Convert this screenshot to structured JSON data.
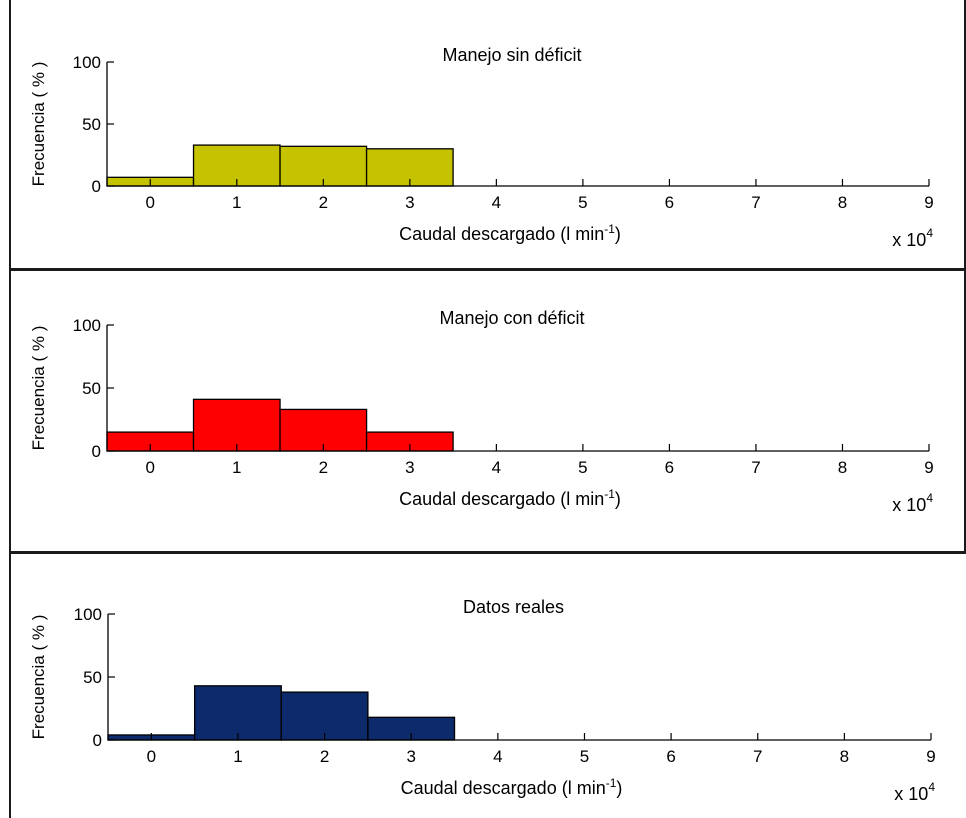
{
  "chart_data": [
    {
      "type": "bar",
      "title": "Manejo sin déficit",
      "xlabel": "Caudal descargado (l min",
      "xlabel_sup": "-1",
      "xlabel_close": ")",
      "ylabel": "Frecuencia ( % )",
      "multiplier_text": "x 10",
      "multiplier_sup": "4",
      "categories": [
        "0",
        "1",
        "2",
        "3"
      ],
      "values": [
        7,
        33,
        32,
        30
      ],
      "color": "#c5c200",
      "xlim": [
        -0.5,
        9
      ],
      "ylim": [
        0,
        100
      ],
      "xticks": [
        "0",
        "1",
        "2",
        "3",
        "4",
        "5",
        "6",
        "7",
        "8",
        "9"
      ],
      "yticks": [
        "0",
        "50",
        "100"
      ],
      "grid": false
    },
    {
      "type": "bar",
      "title": "Manejo con déficit",
      "xlabel": "Caudal descargado (l min",
      "xlabel_sup": "-1",
      "xlabel_close": ")",
      "ylabel": "Frecuencia ( % )",
      "multiplier_text": "x 10",
      "multiplier_sup": "4",
      "categories": [
        "0",
        "1",
        "2",
        "3"
      ],
      "values": [
        15,
        41,
        33,
        15
      ],
      "color": "#ff0000",
      "xlim": [
        -0.5,
        9
      ],
      "ylim": [
        0,
        100
      ],
      "xticks": [
        "0",
        "1",
        "2",
        "3",
        "4",
        "5",
        "6",
        "7",
        "8",
        "9"
      ],
      "yticks": [
        "0",
        "50",
        "100"
      ],
      "grid": false
    },
    {
      "type": "bar",
      "title": "Datos reales",
      "xlabel": "Caudal descargado (l min",
      "xlabel_sup": "-1",
      "xlabel_close": ")",
      "ylabel": "Frecuencia ( % )",
      "multiplier_text": "x 10",
      "multiplier_sup": "4",
      "categories": [
        "0",
        "1",
        "2",
        "3"
      ],
      "values": [
        4,
        43,
        38,
        18
      ],
      "color": "#0d2a6b",
      "xlim": [
        -0.5,
        9
      ],
      "ylim": [
        0,
        100
      ],
      "xticks": [
        "0",
        "1",
        "2",
        "3",
        "4",
        "5",
        "6",
        "7",
        "8",
        "9"
      ],
      "yticks": [
        "0",
        "50",
        "100"
      ],
      "grid": false
    }
  ]
}
